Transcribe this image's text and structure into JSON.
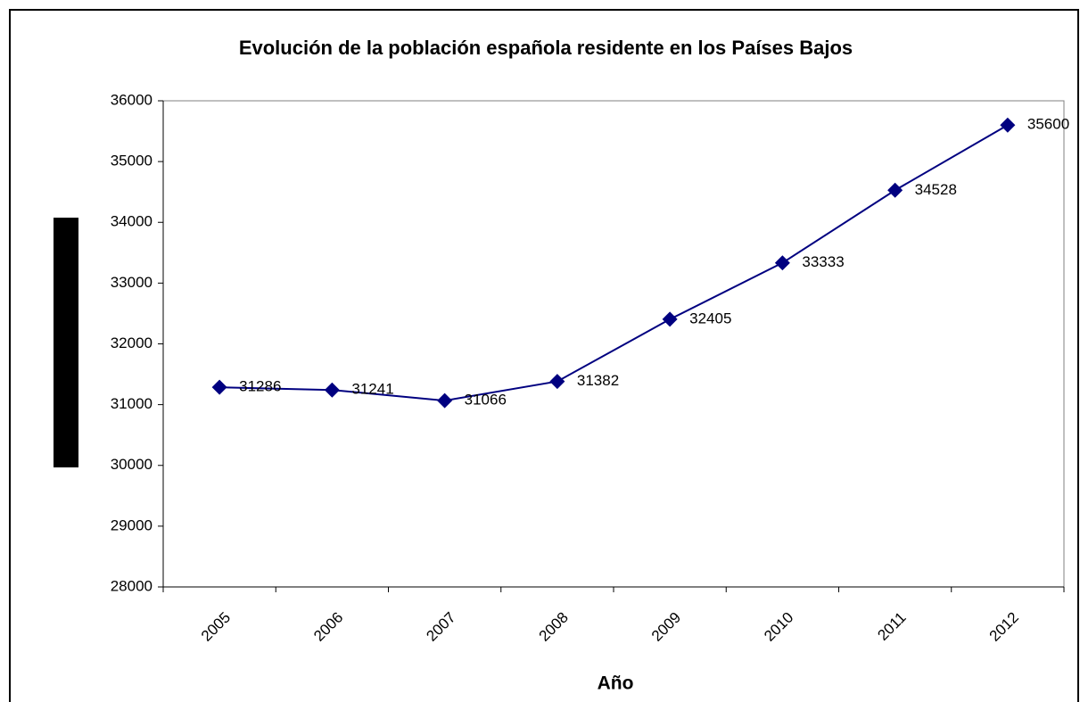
{
  "chart_data": {
    "type": "line",
    "title": "Evolución de la población española residente en los Países Bajos",
    "x_label": "Año",
    "categories": [
      "2005",
      "2006",
      "2007",
      "2008",
      "2009",
      "2010",
      "2011",
      "2012"
    ],
    "series": [
      {
        "color": "#000080",
        "values": [
          31286,
          31241,
          31066,
          31382,
          32405,
          33333,
          34528,
          35600
        ]
      }
    ],
    "ylim": [
      28000,
      36000
    ],
    "yticks": [
      28000,
      29000,
      30000,
      31000,
      32000,
      33000,
      34000,
      35000,
      36000
    ],
    "grid": false
  }
}
